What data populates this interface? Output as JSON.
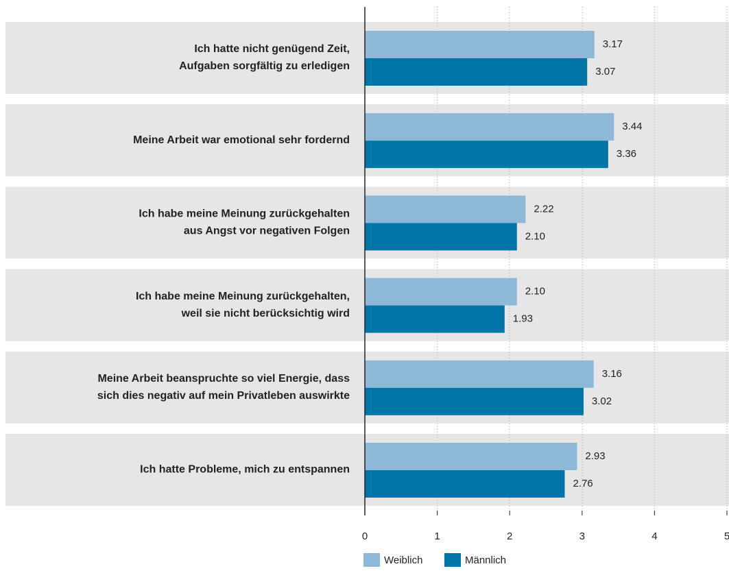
{
  "chart_data": {
    "type": "barh",
    "categories": [
      [
        "Ich hatte nicht genügend Zeit,",
        "Aufgaben sorgfältig zu erledigen"
      ],
      [
        "Meine Arbeit war emotional sehr fordernd"
      ],
      [
        "Ich habe meine Meinung zurückgehalten",
        "aus Angst vor negativen Folgen"
      ],
      [
        "Ich habe meine Meinung zurückgehalten,",
        "weil sie nicht berücksichtig wird"
      ],
      [
        "Meine Arbeit beanspruchte so viel Energie, dass",
        "sich dies negativ auf mein Privatleben auswirkte"
      ],
      [
        "Ich hatte Probleme, mich zu entspannen"
      ]
    ],
    "series": [
      {
        "name": "Weiblich",
        "color": "#8db8d8",
        "values": [
          3.17,
          3.44,
          2.22,
          2.1,
          3.16,
          2.93
        ],
        "value_labels": [
          "3.17",
          "3.44",
          "2.22",
          "2.10",
          "3.16",
          "2.93"
        ]
      },
      {
        "name": "Männlich",
        "color": "#0076a8",
        "values": [
          3.07,
          3.36,
          2.1,
          1.93,
          3.02,
          2.76
        ],
        "value_labels": [
          "3.07",
          "3.36",
          "2.10",
          "1.93",
          "3.02",
          "2.76"
        ]
      }
    ],
    "xlim": [
      0,
      5
    ],
    "xticks": [
      0,
      1,
      2,
      3,
      4,
      5
    ],
    "grid": true,
    "legend": "bottom"
  }
}
